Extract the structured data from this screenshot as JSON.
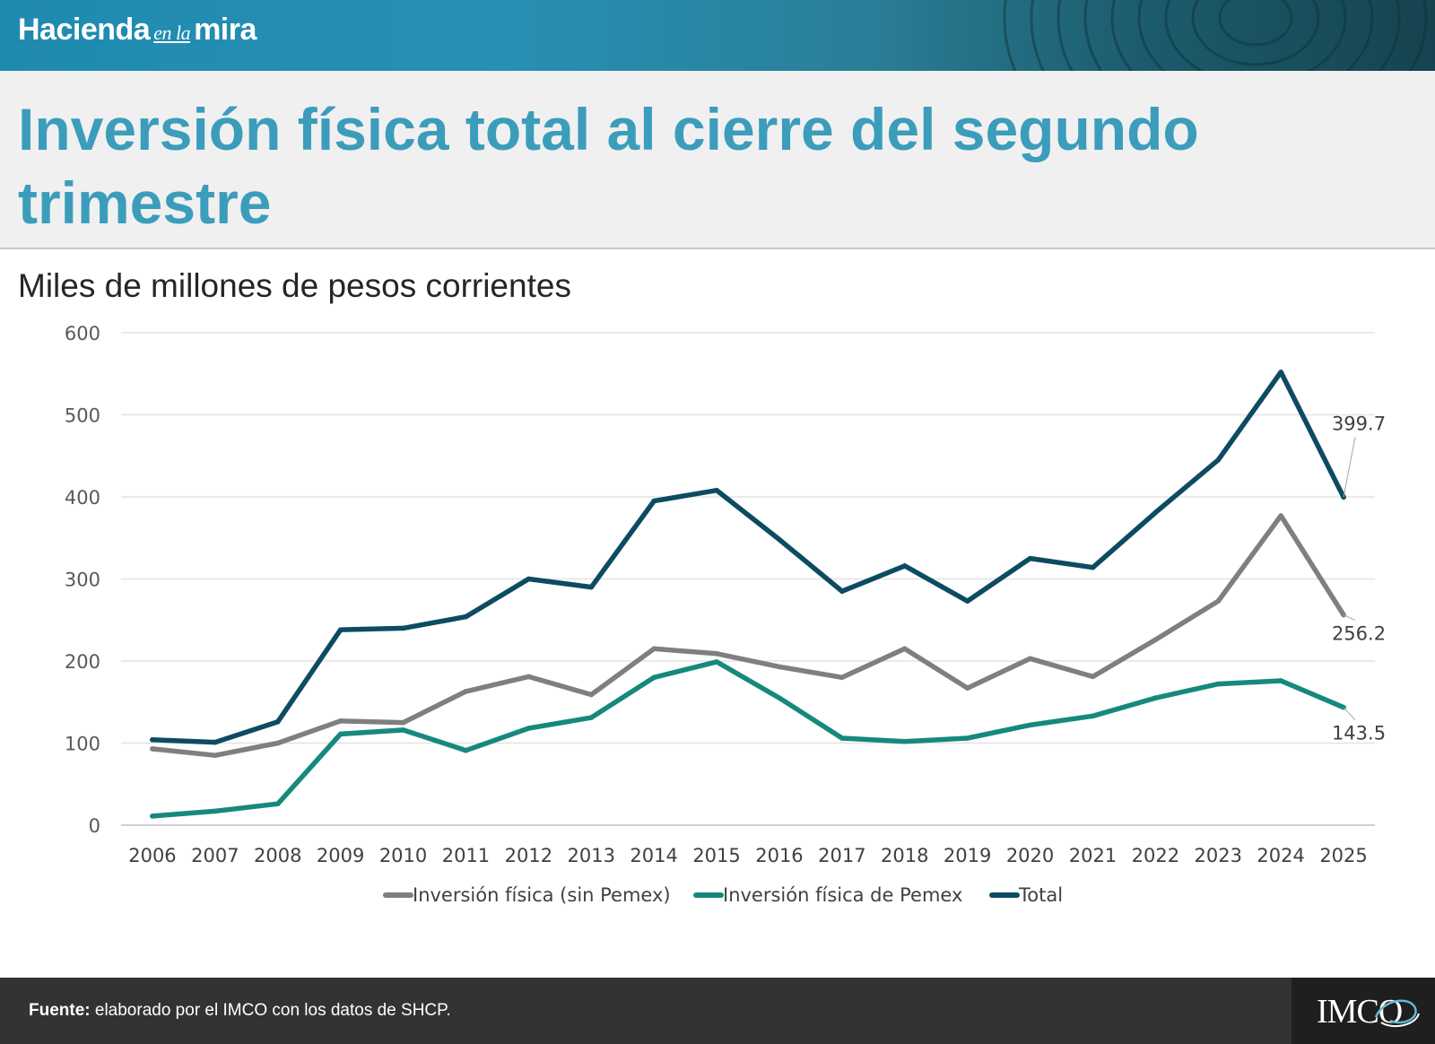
{
  "header": {
    "brand_left": "Hacienda",
    "brand_mid": "en la",
    "brand_right": "mira"
  },
  "title": "Inversión física total al cierre del segundo trimestre",
  "subtitle": "Miles de millones de pesos corrientes",
  "footer": {
    "source_label": "Fuente:",
    "source_text": " elaborado por el IMCO con los datos de SHCP.",
    "logo": "IMCO"
  },
  "colors": {
    "sin_pemex": "#7f7f7f",
    "pemex": "#16897d",
    "total": "#0d4b63",
    "title": "#3b9dbb"
  },
  "chart_data": {
    "type": "line",
    "x": [
      "2006",
      "2007",
      "2008",
      "2009",
      "2010",
      "2011",
      "2012",
      "2013",
      "2014",
      "2015",
      "2016",
      "2017",
      "2018",
      "2019",
      "2020",
      "2021",
      "2022",
      "2023",
      "2024",
      "2025"
    ],
    "ylim": [
      0,
      600
    ],
    "yticks": [
      0,
      100,
      200,
      300,
      400,
      500,
      600
    ],
    "grid": true,
    "legend_position": "bottom",
    "series": [
      {
        "name": "Inversión física (sin Pemex)",
        "color": "#7f7f7f",
        "values": [
          93,
          85,
          100,
          127,
          125,
          163,
          181,
          159,
          215,
          209,
          193,
          180,
          215,
          167,
          203,
          181,
          226,
          273,
          377,
          256.2
        ]
      },
      {
        "name": "Inversión física de Pemex",
        "color": "#16897d",
        "values": [
          11,
          17,
          26,
          111,
          116,
          91,
          118,
          131,
          180,
          199,
          155,
          106,
          102,
          106,
          122,
          133,
          155,
          172,
          176,
          143.5
        ]
      },
      {
        "name": "Total",
        "color": "#0d4b63",
        "values": [
          104,
          101,
          126,
          238,
          240,
          254,
          300,
          290,
          395,
          408,
          348,
          285,
          316,
          273,
          325,
          314,
          381,
          445,
          552,
          399.7
        ]
      }
    ],
    "annotations": [
      "399.7",
      "256.2",
      "143.5"
    ]
  }
}
